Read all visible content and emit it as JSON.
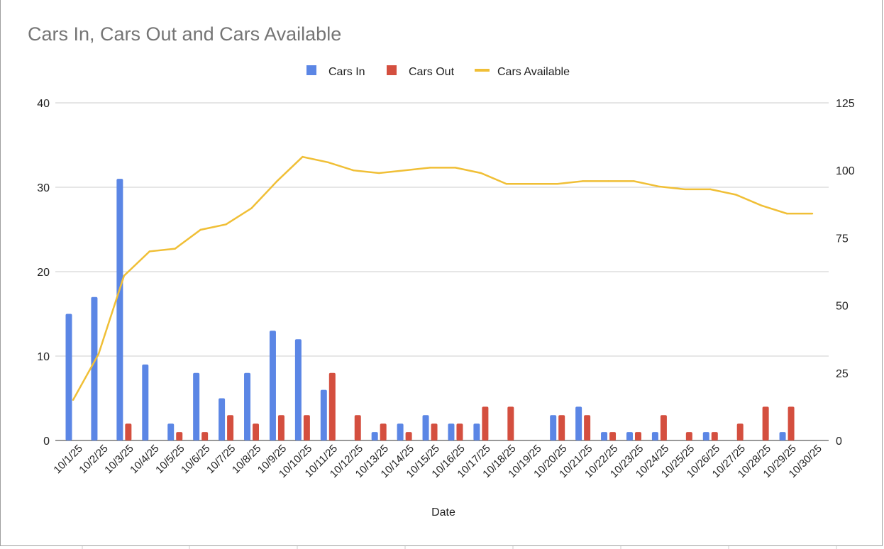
{
  "chart_data": {
    "type": "bar+line",
    "title": "Cars In, Cars Out and Cars Available",
    "xlabel": "Date",
    "ylabel_left": "",
    "ylabel_right": "",
    "ylim_left": [
      0,
      40
    ],
    "ylim_right": [
      0,
      125
    ],
    "yticks_left": [
      0,
      10,
      20,
      30,
      40
    ],
    "yticks_right": [
      0,
      25,
      50,
      75,
      100,
      125
    ],
    "grid": true,
    "legend_position": "top",
    "categories": [
      "10/1/25",
      "10/2/25",
      "10/3/25",
      "10/4/25",
      "10/5/25",
      "10/6/25",
      "10/7/25",
      "10/8/25",
      "10/9/25",
      "10/10/25",
      "10/11/25",
      "10/12/25",
      "10/13/25",
      "10/14/25",
      "10/15/25",
      "10/16/25",
      "10/17/25",
      "10/18/25",
      "10/19/25",
      "10/20/25",
      "10/21/25",
      "10/22/25",
      "10/23/25",
      "10/24/25",
      "10/25/25",
      "10/26/25",
      "10/27/25",
      "10/28/25",
      "10/29/25",
      "10/30/25"
    ],
    "series": [
      {
        "name": "Cars In",
        "type": "bar",
        "axis": "left",
        "color": "#5b86e5",
        "values": [
          15,
          17,
          31,
          9,
          2,
          8,
          5,
          8,
          13,
          12,
          6,
          0,
          1,
          2,
          3,
          2,
          2,
          0,
          0,
          3,
          4,
          1,
          1,
          1,
          0,
          1,
          0,
          0,
          1,
          0
        ]
      },
      {
        "name": "Cars Out",
        "type": "bar",
        "axis": "left",
        "color": "#d44f3f",
        "values": [
          0,
          0,
          2,
          0,
          1,
          1,
          3,
          2,
          3,
          3,
          8,
          3,
          2,
          1,
          2,
          2,
          4,
          4,
          0,
          3,
          3,
          1,
          1,
          3,
          1,
          1,
          2,
          4,
          4,
          0
        ]
      },
      {
        "name": "Cars Available",
        "type": "line",
        "axis": "right",
        "color": "#f0bf36",
        "values": [
          15,
          32,
          61,
          70,
          71,
          78,
          80,
          86,
          96,
          105,
          103,
          100,
          99,
          100,
          101,
          101,
          99,
          95,
          95,
          95,
          96,
          96,
          96,
          94,
          93,
          93,
          91,
          87,
          84,
          84
        ]
      }
    ]
  }
}
